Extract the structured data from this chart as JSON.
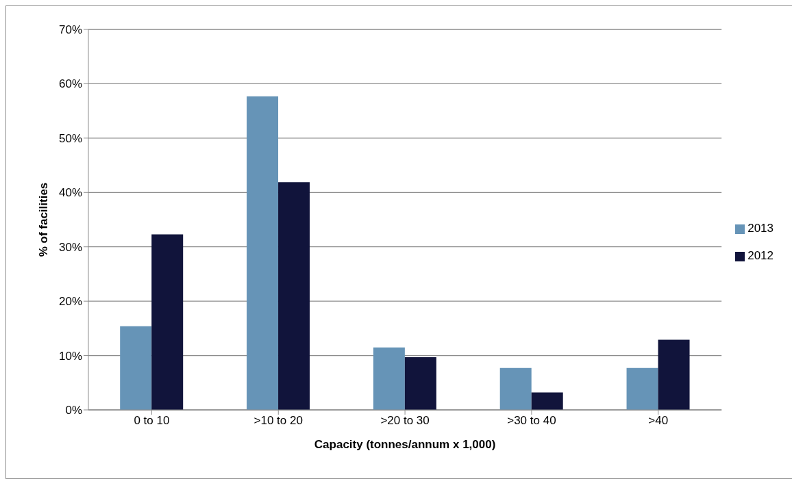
{
  "chart_data": {
    "type": "bar",
    "xlabel": "Capacity (tonnes/annum x 1,000)",
    "ylabel": "% of facilities",
    "categories": [
      "0 to 10",
      ">10 to 20",
      ">20 to 30",
      ">30 to 40",
      ">40"
    ],
    "series": [
      {
        "name": "2013",
        "color": "#6694b7",
        "values": [
          15.4,
          57.7,
          11.5,
          7.7,
          7.7
        ]
      },
      {
        "name": "2012",
        "color": "#11143b",
        "values": [
          32.3,
          41.9,
          9.7,
          3.2,
          12.9
        ]
      }
    ],
    "ylim": [
      0,
      70
    ],
    "yticks": [
      {
        "value": 0,
        "label": "0%"
      },
      {
        "value": 10,
        "label": "10%"
      },
      {
        "value": 20,
        "label": "20%"
      },
      {
        "value": 30,
        "label": "30%"
      },
      {
        "value": 40,
        "label": "40%"
      },
      {
        "value": 50,
        "label": "50%"
      },
      {
        "value": 60,
        "label": "60%"
      },
      {
        "value": 70,
        "label": "70%"
      }
    ],
    "grid": "y",
    "legend": "right"
  }
}
